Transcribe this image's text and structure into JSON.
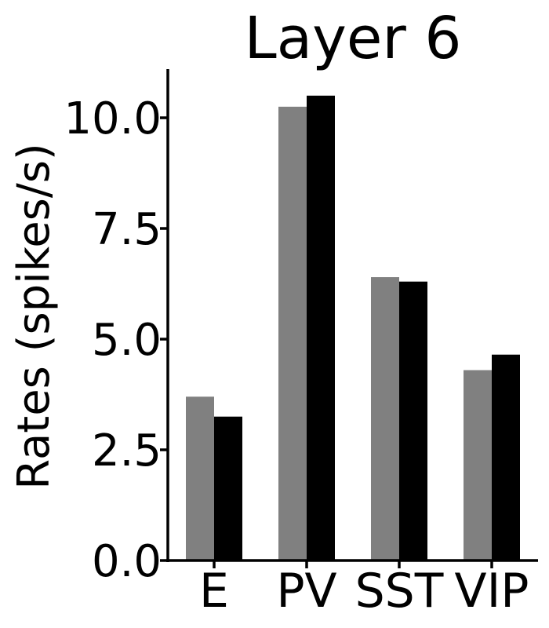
{
  "chart_data": {
    "type": "bar",
    "title": "Layer 6",
    "xlabel": "",
    "ylabel": "Rates (spikes/s)",
    "categories": [
      "E",
      "PV",
      "SST",
      "VIP"
    ],
    "series": [
      {
        "color": "#808080",
        "values": [
          3.7,
          10.25,
          6.4,
          4.3
        ]
      },
      {
        "color": "#000000",
        "values": [
          3.25,
          10.5,
          6.3,
          4.65
        ]
      }
    ],
    "ylim": [
      0,
      11.1
    ],
    "yticks": [
      0.0,
      2.5,
      5.0,
      7.5,
      10.0
    ],
    "ytick_labels": [
      "0.0",
      "2.5",
      "5.0",
      "7.5",
      "10.0"
    ],
    "grid": false,
    "legend": "none"
  }
}
